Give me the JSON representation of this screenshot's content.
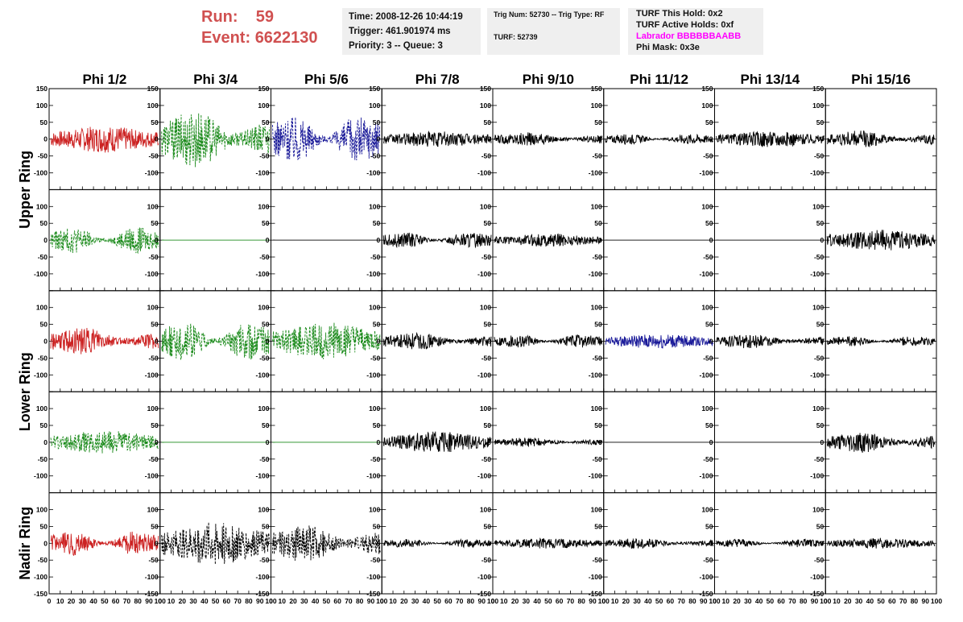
{
  "header": {
    "run_label": "Run:",
    "run_value": "59",
    "event_label": "Event:",
    "event_value": "6622130",
    "time": "Time: 2008-12-26 10:44:19",
    "trigger": "Trigger: 461.901974 ms",
    "priority": "Priority: 3 -- Queue: 3",
    "trig_num": "Trig Num: 52730 -- Trig Type: RF",
    "turf": "TURF: 52739",
    "turf_hold": "TURF This Hold: 0x2",
    "turf_active": "TURF Active Holds: 0xf",
    "labrador": "Labrador BBBBBBAABB",
    "phi_mask": "Phi Mask: 0x3e",
    "labrador_color": "#ff00ff"
  },
  "columns": [
    "Phi 1/2",
    "Phi 3/4",
    "Phi 5/6",
    "Phi 7/8",
    "Phi 9/10",
    "Phi 11/12",
    "Phi 13/14",
    "Phi 15/16"
  ],
  "rings": [
    "Upper Ring",
    "Lower Ring",
    "Nadir Ring"
  ],
  "colors": {
    "red": "#cc2222",
    "green": "#1a8a1a",
    "blue": "#1a1a99",
    "black": "#000000"
  },
  "chart_data": {
    "type": "line",
    "xlim": [
      0,
      100
    ],
    "ylim": [
      -150,
      150
    ],
    "x_ticks": [
      "0",
      "10",
      "20",
      "30",
      "40",
      "50",
      "60",
      "70",
      "80",
      "90",
      "100"
    ],
    "y_ticks": [
      "150",
      "100",
      "50",
      "0",
      "-50",
      "-100",
      "-150"
    ],
    "panels": [
      {
        "row": 0,
        "col": 0,
        "color": "red",
        "style": "solid",
        "amp": 25
      },
      {
        "row": 0,
        "col": 1,
        "color": "green",
        "style": "dash",
        "amp": 60
      },
      {
        "row": 0,
        "col": 2,
        "color": "blue",
        "style": "dash",
        "amp": 55
      },
      {
        "row": 0,
        "col": 3,
        "color": "black",
        "style": "solid",
        "amp": 15
      },
      {
        "row": 0,
        "col": 4,
        "color": "black",
        "style": "solid",
        "amp": 14
      },
      {
        "row": 0,
        "col": 5,
        "color": "black",
        "style": "solid",
        "amp": 12
      },
      {
        "row": 0,
        "col": 6,
        "color": "black",
        "style": "solid",
        "amp": 15
      },
      {
        "row": 0,
        "col": 7,
        "color": "black",
        "style": "solid",
        "amp": 18
      },
      {
        "row": 1,
        "col": 0,
        "color": "green",
        "style": "dash",
        "amp": 30
      },
      {
        "row": 1,
        "col": 1,
        "color": "green",
        "style": "solid",
        "amp": 0
      },
      {
        "row": 1,
        "col": 2,
        "color": "black",
        "style": "solid",
        "amp": 0
      },
      {
        "row": 1,
        "col": 3,
        "color": "black",
        "style": "solid",
        "amp": 18
      },
      {
        "row": 1,
        "col": 4,
        "color": "black",
        "style": "solid",
        "amp": 12
      },
      {
        "row": 1,
        "col": 5,
        "color": "black",
        "style": "solid",
        "amp": 0
      },
      {
        "row": 1,
        "col": 6,
        "color": "black",
        "style": "solid",
        "amp": 0
      },
      {
        "row": 1,
        "col": 7,
        "color": "black",
        "style": "solid",
        "amp": 20
      },
      {
        "row": 2,
        "col": 0,
        "color": "red",
        "style": "solid",
        "amp": 28
      },
      {
        "row": 2,
        "col": 1,
        "color": "green",
        "style": "dash",
        "amp": 45
      },
      {
        "row": 2,
        "col": 2,
        "color": "green",
        "style": "dash",
        "amp": 35
      },
      {
        "row": 2,
        "col": 3,
        "color": "black",
        "style": "solid",
        "amp": 18
      },
      {
        "row": 2,
        "col": 4,
        "color": "black",
        "style": "solid",
        "amp": 16
      },
      {
        "row": 2,
        "col": 5,
        "color": "blue",
        "style": "solid",
        "amp": 14
      },
      {
        "row": 2,
        "col": 6,
        "color": "black",
        "style": "solid",
        "amp": 15
      },
      {
        "row": 2,
        "col": 7,
        "color": "black",
        "style": "solid",
        "amp": 12
      },
      {
        "row": 3,
        "col": 0,
        "color": "green",
        "style": "dash",
        "amp": 22
      },
      {
        "row": 3,
        "col": 1,
        "color": "green",
        "style": "solid",
        "amp": 0
      },
      {
        "row": 3,
        "col": 2,
        "color": "green",
        "style": "solid",
        "amp": 0
      },
      {
        "row": 3,
        "col": 3,
        "color": "black",
        "style": "solid",
        "amp": 20
      },
      {
        "row": 3,
        "col": 4,
        "color": "black",
        "style": "solid",
        "amp": 10
      },
      {
        "row": 3,
        "col": 5,
        "color": "black",
        "style": "solid",
        "amp": 0
      },
      {
        "row": 3,
        "col": 6,
        "color": "black",
        "style": "solid",
        "amp": 0
      },
      {
        "row": 3,
        "col": 7,
        "color": "black",
        "style": "solid",
        "amp": 22
      },
      {
        "row": 4,
        "col": 0,
        "color": "red",
        "style": "solid",
        "amp": 28
      },
      {
        "row": 4,
        "col": 1,
        "color": "black",
        "style": "dash",
        "amp": 40
      },
      {
        "row": 4,
        "col": 2,
        "color": "black",
        "style": "dash",
        "amp": 40
      },
      {
        "row": 4,
        "col": 3,
        "color": "black",
        "style": "solid",
        "amp": 10
      },
      {
        "row": 4,
        "col": 4,
        "color": "black",
        "style": "solid",
        "amp": 10
      },
      {
        "row": 4,
        "col": 5,
        "color": "black",
        "style": "solid",
        "amp": 11
      },
      {
        "row": 4,
        "col": 6,
        "color": "black",
        "style": "solid",
        "amp": 10
      },
      {
        "row": 4,
        "col": 7,
        "color": "black",
        "style": "solid",
        "amp": 10
      }
    ]
  }
}
